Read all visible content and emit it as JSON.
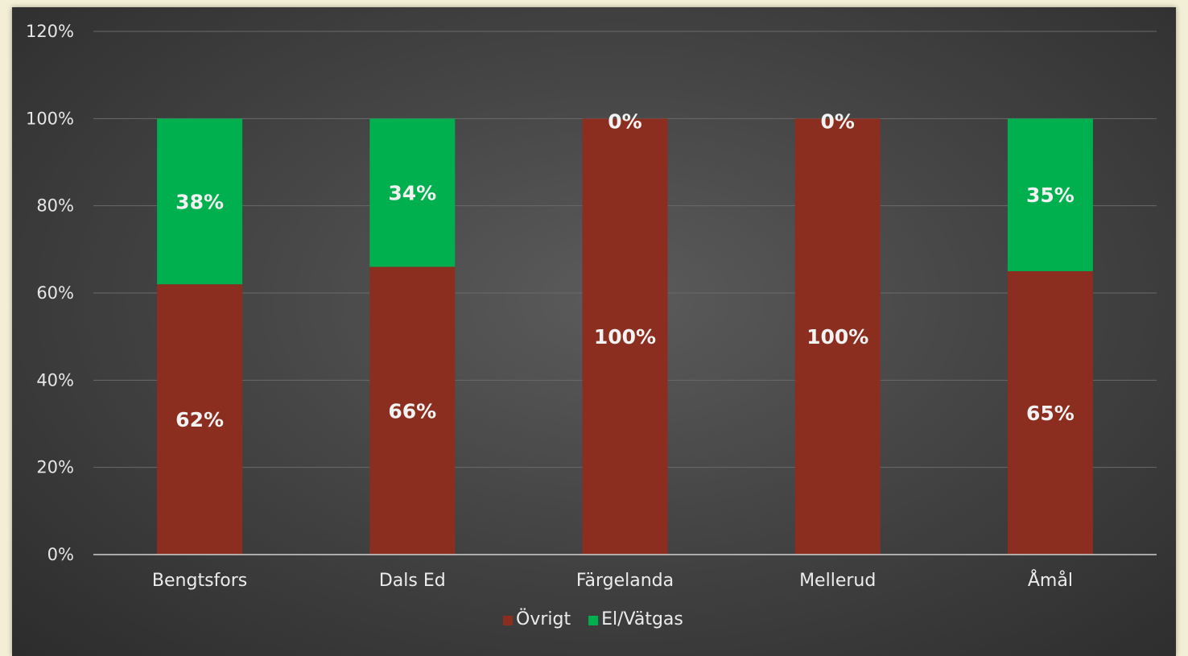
{
  "chart_data": {
    "type": "bar",
    "stacked": true,
    "categories": [
      "Bengtsfors",
      "Dals Ed",
      "Färgelanda",
      "Mellerud",
      "Åmål"
    ],
    "series": [
      {
        "name": "Övrigt",
        "values": [
          62,
          66,
          100,
          100,
          65
        ],
        "labels": [
          "62%",
          "66%",
          "100%",
          "100%",
          "65%"
        ],
        "color": "#8b2e1f"
      },
      {
        "name": "El/Vätgas",
        "values": [
          38,
          34,
          0,
          0,
          35
        ],
        "labels": [
          "38%",
          "34%",
          "0%",
          "0%",
          "35%"
        ],
        "color": "#00b04f"
      }
    ],
    "ylim": [
      0,
      120
    ],
    "yticks": [
      0,
      20,
      40,
      60,
      80,
      100,
      120
    ],
    "ytick_labels": [
      "0%",
      "20%",
      "40%",
      "60%",
      "80%",
      "100%",
      "120%"
    ],
    "grid": true,
    "legend": "bottom"
  }
}
